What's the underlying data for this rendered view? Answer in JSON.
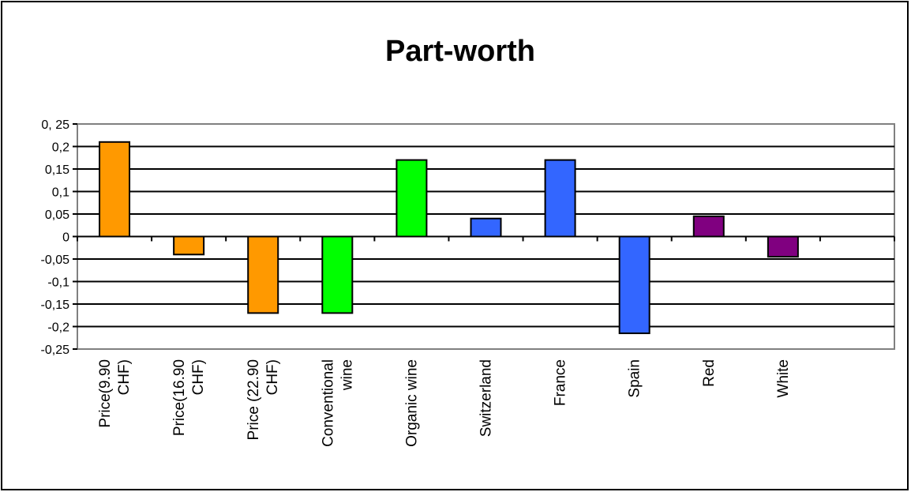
{
  "chart_data": {
    "type": "bar",
    "title": "Part-worth",
    "xlabel": "",
    "ylabel": "",
    "ylim": [
      -0.25,
      0.25
    ],
    "y_ticks": [
      0.25,
      0.2,
      0.15,
      0.1,
      0.05,
      0,
      -0.05,
      -0.1,
      -0.15,
      -0.2,
      -0.25
    ],
    "y_tick_labels": [
      "0, 25",
      "0,2",
      "0,15",
      "0,1",
      "0,05",
      "0",
      "-0,05",
      "-0,1",
      "-0,15",
      "-0,2",
      "-0,25"
    ],
    "grid": true,
    "legend": "none",
    "categories": [
      [
        "Price(9.90",
        "CHF)"
      ],
      [
        "Price(16.90",
        "CHF)"
      ],
      [
        "Price (22.90",
        "CHF)"
      ],
      [
        "Conventional",
        "wine"
      ],
      [
        "Organic wine"
      ],
      [
        "Switzerland"
      ],
      [
        "France"
      ],
      [
        "Spain"
      ],
      [
        "Red"
      ],
      [
        "White"
      ]
    ],
    "values": [
      0.21,
      -0.04,
      -0.17,
      -0.17,
      0.17,
      0.04,
      0.17,
      -0.215,
      0.045,
      -0.045
    ],
    "colors": [
      "#FF9900",
      "#FF9900",
      "#FF9900",
      "#00FF00",
      "#00FF00",
      "#3366FF",
      "#3366FF",
      "#3366FF",
      "#800080",
      "#800080"
    ]
  }
}
